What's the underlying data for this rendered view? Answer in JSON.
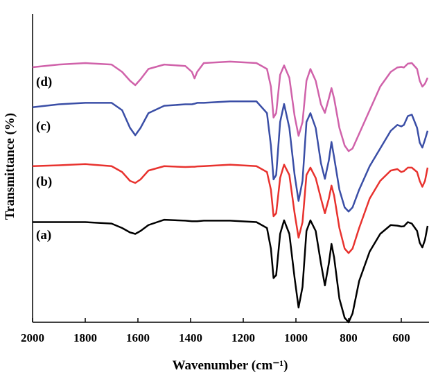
{
  "chart_data": {
    "type": "line",
    "x_label": "Wavenumber (cm⁻¹)",
    "y_label": "Transmittance (%)",
    "xlim": [
      2000,
      500
    ],
    "xticks": [
      2000,
      1800,
      1600,
      1400,
      1200,
      1000,
      800,
      600
    ],
    "ylim": [
      0,
      100
    ],
    "x": [
      2000,
      1900,
      1800,
      1700,
      1660,
      1630,
      1610,
      1590,
      1560,
      1500,
      1420,
      1395,
      1385,
      1375,
      1350,
      1250,
      1150,
      1110,
      1095,
      1085,
      1075,
      1060,
      1045,
      1025,
      1005,
      990,
      975,
      960,
      945,
      925,
      905,
      890,
      875,
      865,
      855,
      835,
      815,
      800,
      785,
      760,
      720,
      680,
      640,
      615,
      600,
      590,
      575,
      560,
      540,
      530,
      520,
      510,
      500
    ],
    "series": [
      {
        "name": "(a)",
        "color": "#000000",
        "values": [
          34,
          34,
          34,
          33.5,
          32,
          30.5,
          30,
          31,
          33,
          34.8,
          34.5,
          34.3,
          34.3,
          34.3,
          34.5,
          34.5,
          34,
          32,
          25,
          15,
          16,
          30,
          34.6,
          30,
          15,
          5,
          12,
          31,
          34.6,
          31,
          20,
          12.5,
          20,
          26.6,
          22,
          8,
          1.5,
          0,
          3,
          14,
          24,
          30,
          33,
          32.8,
          32.5,
          32.6,
          34,
          33.5,
          31,
          27,
          25.4,
          28,
          32.7
        ]
      },
      {
        "name": "(b)",
        "color": "#e8322e",
        "values": [
          53,
          53.3,
          53.7,
          53,
          51,
          48,
          47.3,
          48.5,
          51.5,
          53,
          52.7,
          52.8,
          52.8,
          52.9,
          53,
          53.5,
          53,
          51,
          45,
          36,
          37,
          49,
          53.5,
          50,
          37,
          28.7,
          34,
          50,
          52.5,
          49,
          42,
          37,
          42,
          46.4,
          43,
          32,
          25,
          23.5,
          25,
          32,
          42,
          48,
          51.5,
          52,
          51,
          51.3,
          52.5,
          52.5,
          51,
          48,
          46,
          48,
          52.5
        ]
      },
      {
        "name": "(c)",
        "color": "#3a4ea6",
        "values": [
          73,
          74,
          74.5,
          74.5,
          72,
          66,
          63.5,
          66,
          71,
          73.5,
          74,
          74,
          74.2,
          74.5,
          74.5,
          75,
          75,
          71,
          60,
          48.5,
          50,
          68,
          74.1,
          66,
          50,
          41.2,
          48,
          68,
          71,
          66,
          54,
          48.7,
          55,
          61.2,
          56,
          45,
          39,
          37.6,
          39,
          45,
          53,
          59,
          65,
          67,
          66.5,
          67,
          70,
          70.5,
          66,
          61,
          59.3,
          62,
          65
        ]
      },
      {
        "name": "(d)",
        "color": "#d062aa",
        "values": [
          86.6,
          87.5,
          88,
          87.5,
          85,
          82,
          80.5,
          82.5,
          86,
          87.5,
          87,
          85,
          82.8,
          85,
          88,
          88.5,
          88,
          86,
          80,
          69.5,
          71,
          84,
          87.2,
          83,
          70,
          63.3,
          68,
          82,
          86,
          82,
          74,
          71.1,
          76,
          79.5,
          76,
          66,
          60,
          58.1,
          59,
          64,
          72,
          80,
          85,
          86.5,
          86.7,
          86.5,
          87.8,
          88,
          86,
          82,
          80,
          81,
          83
        ]
      }
    ]
  }
}
